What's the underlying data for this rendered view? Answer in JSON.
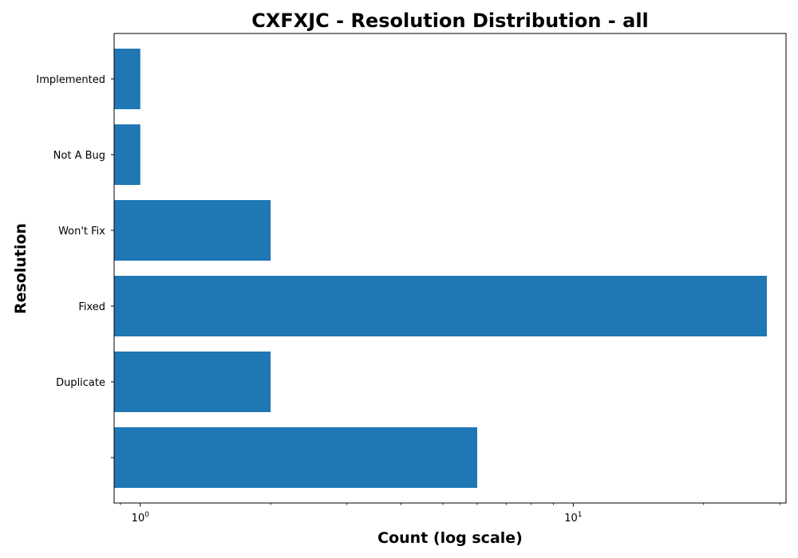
{
  "chart_data": {
    "type": "bar",
    "orientation": "horizontal",
    "title": "CXFXJC - Resolution Distribution - all",
    "xlabel": "Count (log scale)",
    "ylabel": "Resolution",
    "xscale": "log",
    "xlim": [
      0.87,
      31
    ],
    "x_ticks": [
      {
        "base": "10",
        "exp": "0",
        "value": 1
      },
      {
        "base": "10",
        "exp": "1",
        "value": 10
      }
    ],
    "categories": [
      "",
      "Duplicate",
      "Fixed",
      "Won't Fix",
      "Not A Bug",
      "Implemented"
    ],
    "values": [
      6,
      2,
      28,
      2,
      1,
      1
    ],
    "bar_color": "#1f77b4",
    "grid": false,
    "legend": "none"
  }
}
